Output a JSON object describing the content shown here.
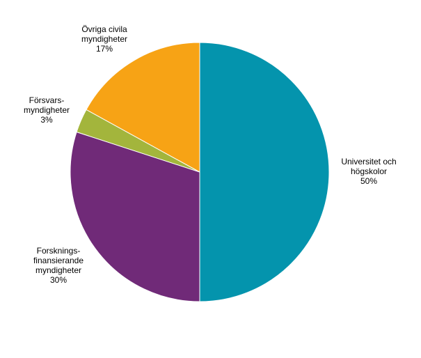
{
  "chart_data": {
    "type": "pie",
    "title": "",
    "slices": [
      {
        "label_lines": [
          "Universitet och",
          "högskolor"
        ],
        "value": 50,
        "value_label": "50%",
        "color": "#0494AD"
      },
      {
        "label_lines": [
          "Forsknings-",
          "finansierande",
          "myndigheter"
        ],
        "value": 30,
        "value_label": "30%",
        "color": "#702A78"
      },
      {
        "label_lines": [
          "Försvars-",
          "myndigheter"
        ],
        "value": 3,
        "value_label": "3%",
        "color": "#A3B53C"
      },
      {
        "label_lines": [
          "Övriga civila",
          "myndigheter"
        ],
        "value": 17,
        "value_label": "17%",
        "color": "#F7A315"
      }
    ],
    "start_angle": "12 o'clock",
    "direction": "clockwise",
    "legend": "none"
  }
}
